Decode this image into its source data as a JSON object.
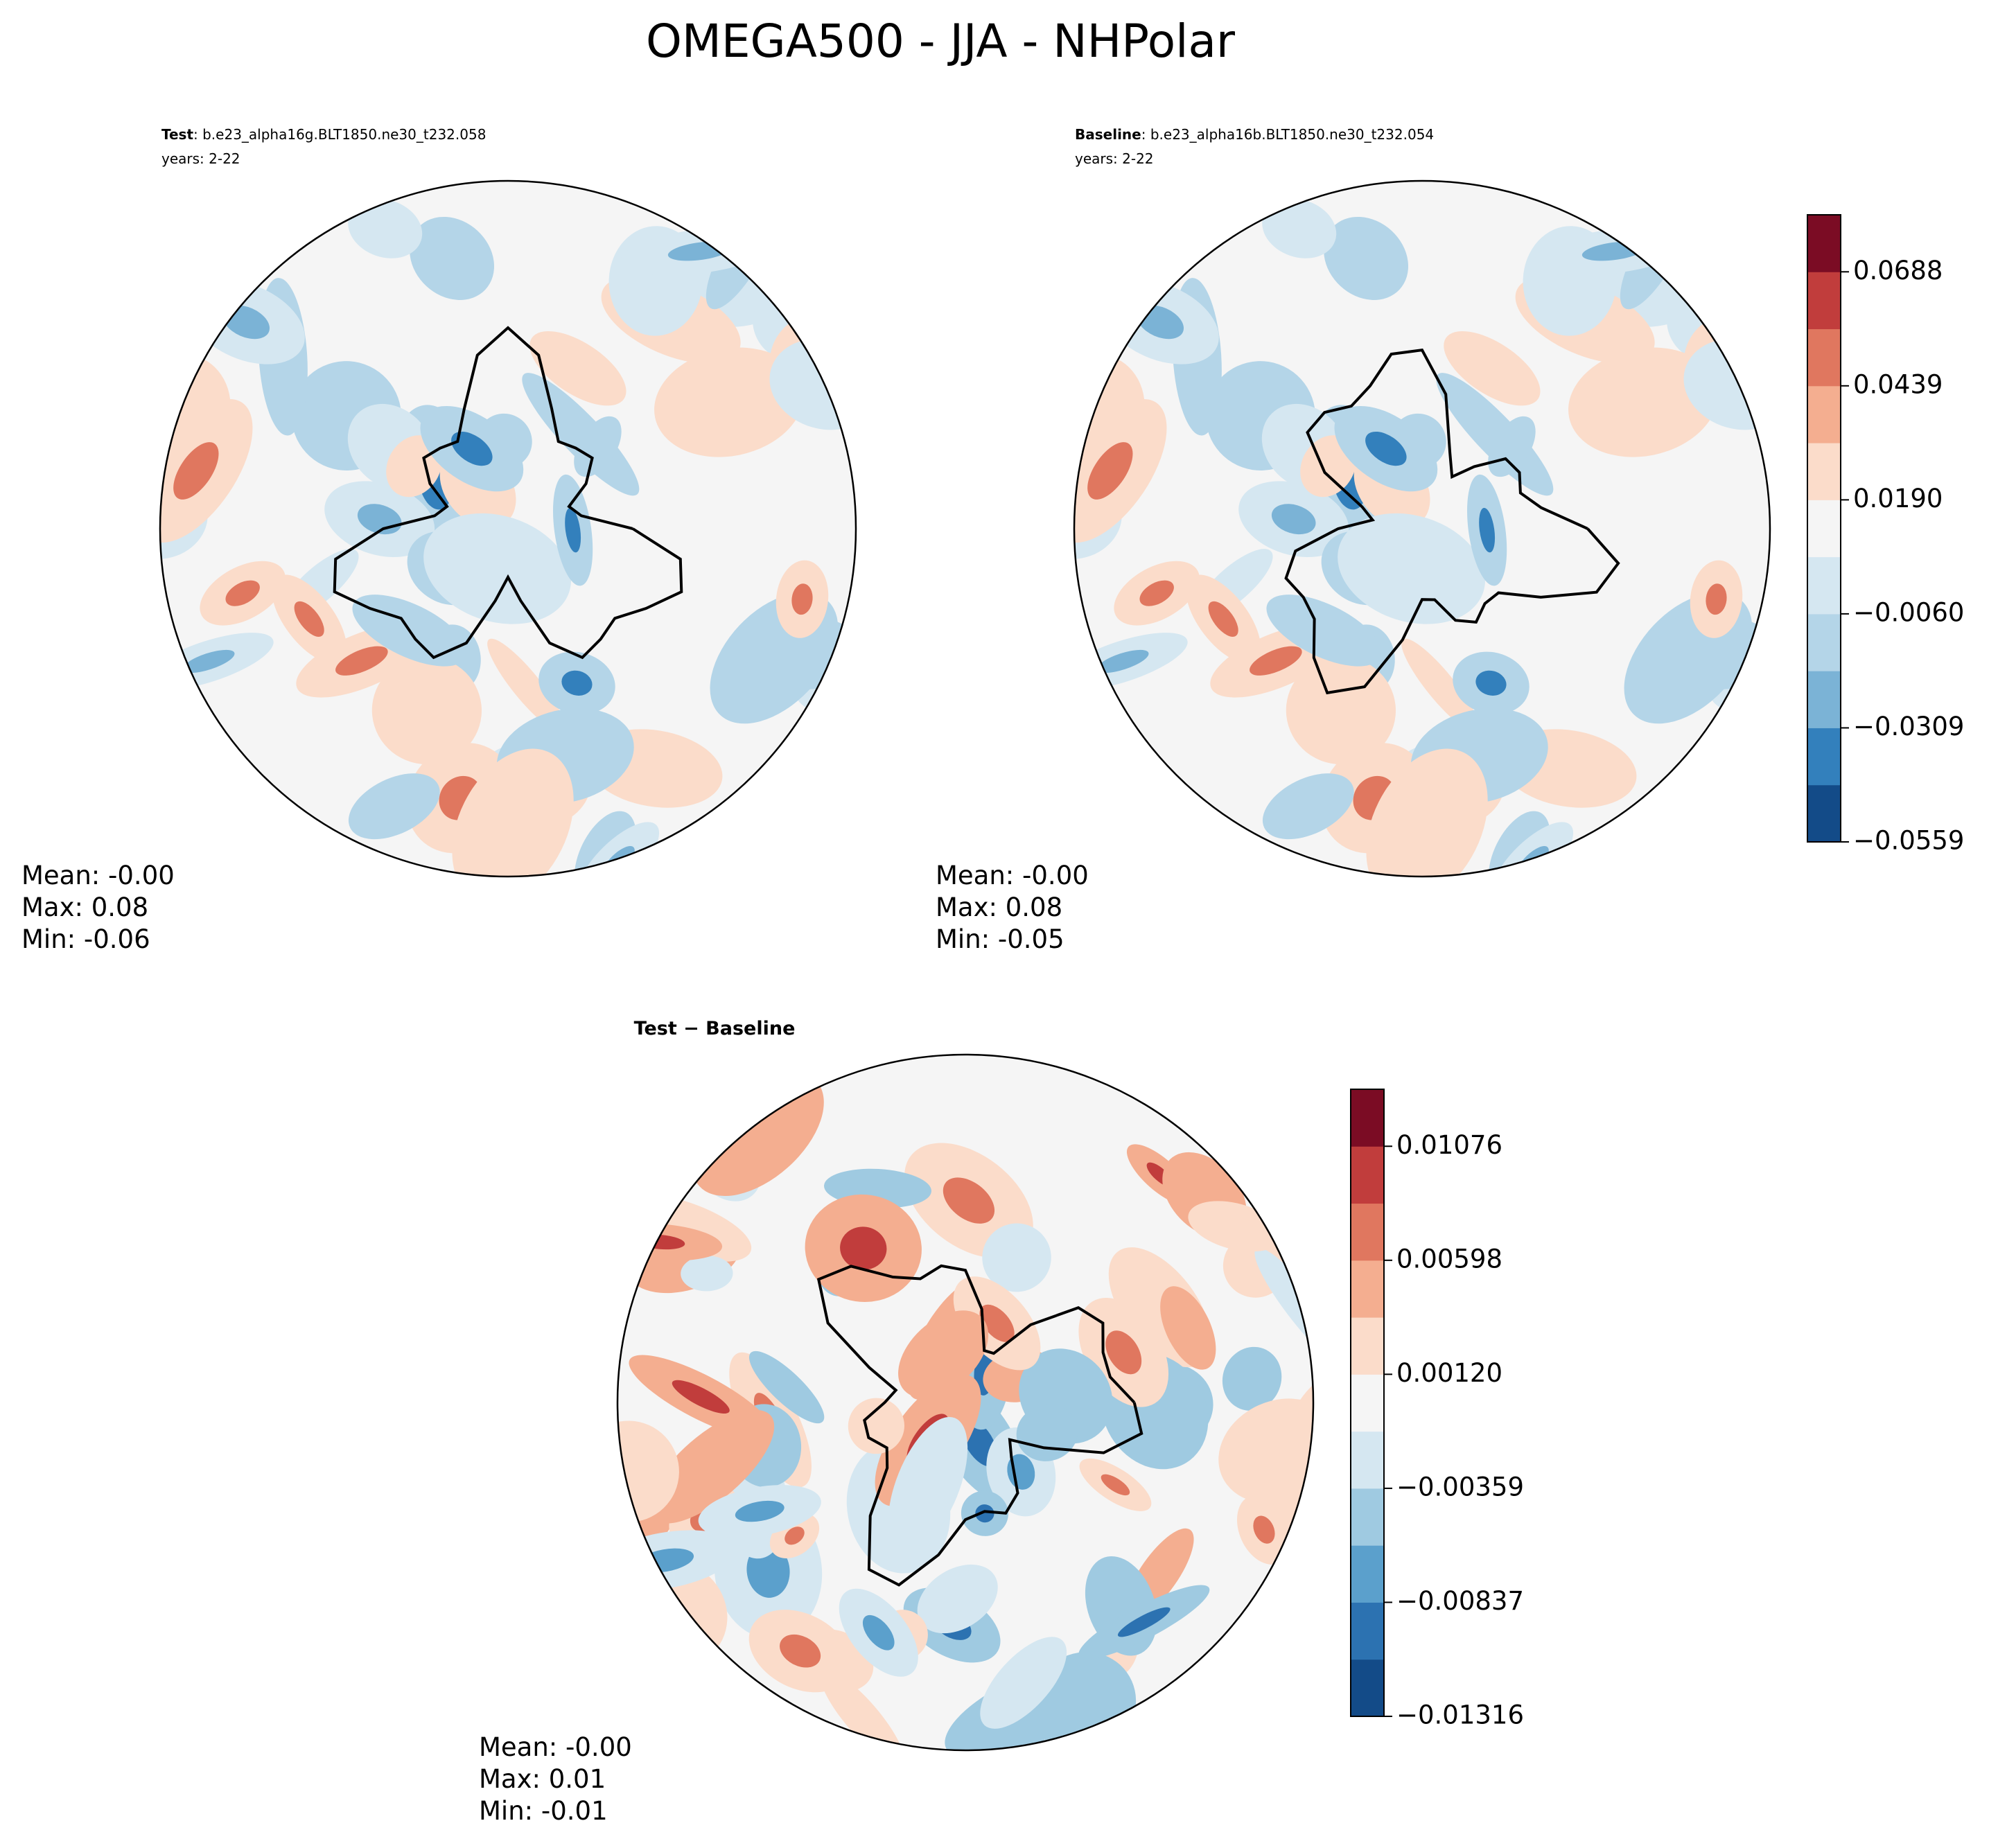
{
  "title": "OMEGA500 - JJA - NHPolar",
  "panels": [
    {
      "label": "Test",
      "case": ": b.e23_alpha16g.BLT1850.ne30_t232.058",
      "years": "years: 2-22",
      "stats": [
        "Mean: -0.00",
        "Max:  0.08",
        "Min: -0.06"
      ]
    },
    {
      "label": "Baseline",
      "case": ": b.e23_alpha16b.BLT1850.ne30_t232.054",
      "years": "years: 2-22",
      "stats": [
        "Mean: -0.00",
        "Max:  0.08",
        "Min: -0.05"
      ]
    },
    {
      "label": "Test − Baseline",
      "stats": [
        "Mean: -0.00",
        "Max:  0.01",
        "Min: -0.01"
      ]
    }
  ],
  "colorbars": [
    {
      "ticks": [
        "−0.0559",
        "−0.0309",
        "−0.0060",
        "0.0190",
        "0.0439",
        "0.0688"
      ],
      "colors": [
        "#134b88",
        "#3380bc",
        "#7bb3d6",
        "#b4d5e8",
        "#d5e7f1",
        "#f5f5f5",
        "#fbdcca",
        "#f4ae90",
        "#e0775f",
        "#c13d3c",
        "#7b0c24"
      ]
    },
    {
      "ticks": [
        "−0.01316",
        "−0.00837",
        "−0.00359",
        "0.00120",
        "0.00598",
        "0.01076"
      ],
      "colors": [
        "#134b88",
        "#2c72b1",
        "#5ba0cc",
        "#9fcae1",
        "#d5e7f1",
        "#f5f5f5",
        "#fbdcca",
        "#f4ae90",
        "#e0775f",
        "#c13d3c",
        "#7b0c24"
      ]
    }
  ]
}
